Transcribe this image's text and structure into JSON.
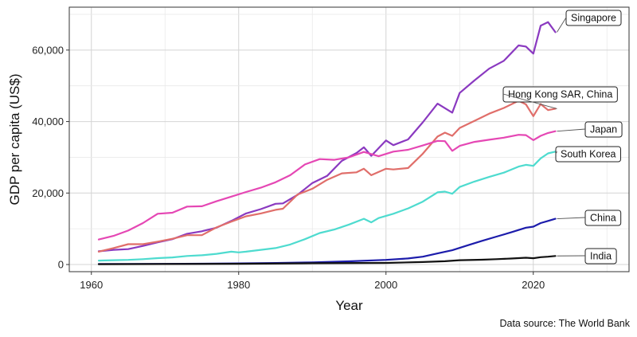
{
  "chart_data": {
    "type": "line",
    "title": "",
    "xlabel": "Year",
    "ylabel": "GDP per capita (US$)",
    "xlim": [
      1957,
      2033
    ],
    "ylim": [
      -2000,
      72000
    ],
    "xticks": [
      1960,
      1980,
      2000,
      2020
    ],
    "xtick_labels": [
      "1960",
      "1980",
      "2000",
      "2020"
    ],
    "yticks": [
      0,
      20000,
      40000,
      60000
    ],
    "ytick_labels": [
      "0",
      "20,000",
      "40,000",
      "60,000"
    ],
    "grid": true,
    "legend": "direct labels at line ends (right)",
    "source": "Data source: The World Bank",
    "series": [
      {
        "name": "Singapore",
        "color": "#8a39c0",
        "points": [
          [
            1961,
            3700
          ],
          [
            1963,
            4100
          ],
          [
            1965,
            4300
          ],
          [
            1967,
            5200
          ],
          [
            1969,
            6200
          ],
          [
            1971,
            7100
          ],
          [
            1973,
            8600
          ],
          [
            1975,
            9300
          ],
          [
            1977,
            10300
          ],
          [
            1979,
            12200
          ],
          [
            1981,
            14300
          ],
          [
            1983,
            15500
          ],
          [
            1985,
            17000
          ],
          [
            1986,
            17100
          ],
          [
            1988,
            19500
          ],
          [
            1990,
            22800
          ],
          [
            1992,
            24800
          ],
          [
            1994,
            29000
          ],
          [
            1996,
            31200
          ],
          [
            1997,
            32800
          ],
          [
            1998,
            30400
          ],
          [
            2000,
            34700
          ],
          [
            2001,
            33400
          ],
          [
            2003,
            35000
          ],
          [
            2005,
            39800
          ],
          [
            2007,
            45000
          ],
          [
            2009,
            42500
          ],
          [
            2010,
            48000
          ],
          [
            2012,
            51500
          ],
          [
            2014,
            54800
          ],
          [
            2016,
            57000
          ],
          [
            2018,
            61300
          ],
          [
            2019,
            61000
          ],
          [
            2020,
            59000
          ],
          [
            2021,
            66800
          ],
          [
            2022,
            67800
          ],
          [
            2023,
            65000
          ]
        ]
      },
      {
        "name": "Hong Kong SAR, China",
        "color": "#e06e6a",
        "points": [
          [
            1961,
            3600
          ],
          [
            1963,
            4600
          ],
          [
            1965,
            5700
          ],
          [
            1967,
            5700
          ],
          [
            1969,
            6400
          ],
          [
            1971,
            7200
          ],
          [
            1973,
            8200
          ],
          [
            1975,
            8200
          ],
          [
            1977,
            10400
          ],
          [
            1979,
            12000
          ],
          [
            1981,
            13500
          ],
          [
            1983,
            14300
          ],
          [
            1985,
            15300
          ],
          [
            1986,
            15600
          ],
          [
            1988,
            19600
          ],
          [
            1990,
            21200
          ],
          [
            1992,
            23700
          ],
          [
            1994,
            25500
          ],
          [
            1996,
            25800
          ],
          [
            1997,
            26800
          ],
          [
            1998,
            25000
          ],
          [
            2000,
            26800
          ],
          [
            2001,
            26600
          ],
          [
            2003,
            27000
          ],
          [
            2005,
            31000
          ],
          [
            2007,
            35800
          ],
          [
            2008,
            36900
          ],
          [
            2009,
            36000
          ],
          [
            2010,
            38200
          ],
          [
            2012,
            40200
          ],
          [
            2014,
            42200
          ],
          [
            2016,
            43800
          ],
          [
            2018,
            45800
          ],
          [
            2019,
            44800
          ],
          [
            2020,
            41500
          ],
          [
            2021,
            44900
          ],
          [
            2022,
            43200
          ],
          [
            2023,
            43600
          ]
        ]
      },
      {
        "name": "Japan",
        "color": "#e547b4",
        "points": [
          [
            1961,
            7000
          ],
          [
            1963,
            8000
          ],
          [
            1965,
            9500
          ],
          [
            1967,
            11600
          ],
          [
            1969,
            14200
          ],
          [
            1971,
            14500
          ],
          [
            1973,
            16200
          ],
          [
            1975,
            16300
          ],
          [
            1977,
            17700
          ],
          [
            1979,
            19000
          ],
          [
            1981,
            20300
          ],
          [
            1983,
            21500
          ],
          [
            1985,
            23000
          ],
          [
            1987,
            25000
          ],
          [
            1989,
            28000
          ],
          [
            1991,
            29500
          ],
          [
            1993,
            29300
          ],
          [
            1995,
            30000
          ],
          [
            1997,
            31500
          ],
          [
            1999,
            30300
          ],
          [
            2001,
            31600
          ],
          [
            2003,
            32100
          ],
          [
            2005,
            33300
          ],
          [
            2007,
            34600
          ],
          [
            2008,
            34500
          ],
          [
            2009,
            31800
          ],
          [
            2010,
            33200
          ],
          [
            2012,
            34300
          ],
          [
            2014,
            34900
          ],
          [
            2016,
            35500
          ],
          [
            2018,
            36300
          ],
          [
            2019,
            36200
          ],
          [
            2020,
            34800
          ],
          [
            2021,
            36000
          ],
          [
            2022,
            36800
          ],
          [
            2023,
            37300
          ]
        ]
      },
      {
        "name": "South Korea",
        "color": "#4edbcf",
        "points": [
          [
            1961,
            1100
          ],
          [
            1963,
            1200
          ],
          [
            1965,
            1300
          ],
          [
            1967,
            1500
          ],
          [
            1969,
            1800
          ],
          [
            1971,
            2000
          ],
          [
            1973,
            2400
          ],
          [
            1975,
            2600
          ],
          [
            1977,
            3000
          ],
          [
            1979,
            3600
          ],
          [
            1980,
            3400
          ],
          [
            1981,
            3600
          ],
          [
            1983,
            4100
          ],
          [
            1985,
            4600
          ],
          [
            1987,
            5600
          ],
          [
            1989,
            7100
          ],
          [
            1991,
            8800
          ],
          [
            1993,
            9800
          ],
          [
            1995,
            11200
          ],
          [
            1997,
            12800
          ],
          [
            1998,
            11800
          ],
          [
            1999,
            13000
          ],
          [
            2001,
            14200
          ],
          [
            2003,
            15700
          ],
          [
            2005,
            17600
          ],
          [
            2007,
            20200
          ],
          [
            2008,
            20400
          ],
          [
            2009,
            19800
          ],
          [
            2010,
            21700
          ],
          [
            2012,
            23200
          ],
          [
            2014,
            24500
          ],
          [
            2016,
            25700
          ],
          [
            2018,
            27400
          ],
          [
            2019,
            27900
          ],
          [
            2020,
            27600
          ],
          [
            2021,
            29700
          ],
          [
            2022,
            31100
          ],
          [
            2023,
            31600
          ]
        ]
      },
      {
        "name": "China",
        "color": "#1c1cab",
        "points": [
          [
            1961,
            150
          ],
          [
            1965,
            170
          ],
          [
            1970,
            190
          ],
          [
            1975,
            230
          ],
          [
            1980,
            310
          ],
          [
            1985,
            420
          ],
          [
            1990,
            600
          ],
          [
            1995,
            900
          ],
          [
            2000,
            1300
          ],
          [
            2003,
            1700
          ],
          [
            2005,
            2200
          ],
          [
            2007,
            3100
          ],
          [
            2009,
            4000
          ],
          [
            2011,
            5300
          ],
          [
            2013,
            6600
          ],
          [
            2015,
            7800
          ],
          [
            2017,
            9000
          ],
          [
            2019,
            10300
          ],
          [
            2020,
            10600
          ],
          [
            2021,
            11600
          ],
          [
            2022,
            12200
          ],
          [
            2023,
            12800
          ]
        ]
      },
      {
        "name": "India",
        "color": "#111111",
        "points": [
          [
            1961,
            90
          ],
          [
            1970,
            130
          ],
          [
            1980,
            200
          ],
          [
            1990,
            360
          ],
          [
            2000,
            460
          ],
          [
            2005,
            700
          ],
          [
            2008,
            920
          ],
          [
            2010,
            1200
          ],
          [
            2013,
            1350
          ],
          [
            2015,
            1500
          ],
          [
            2017,
            1680
          ],
          [
            2019,
            1900
          ],
          [
            2020,
            1770
          ],
          [
            2021,
            2050
          ],
          [
            2022,
            2200
          ],
          [
            2023,
            2400
          ]
        ]
      }
    ]
  }
}
